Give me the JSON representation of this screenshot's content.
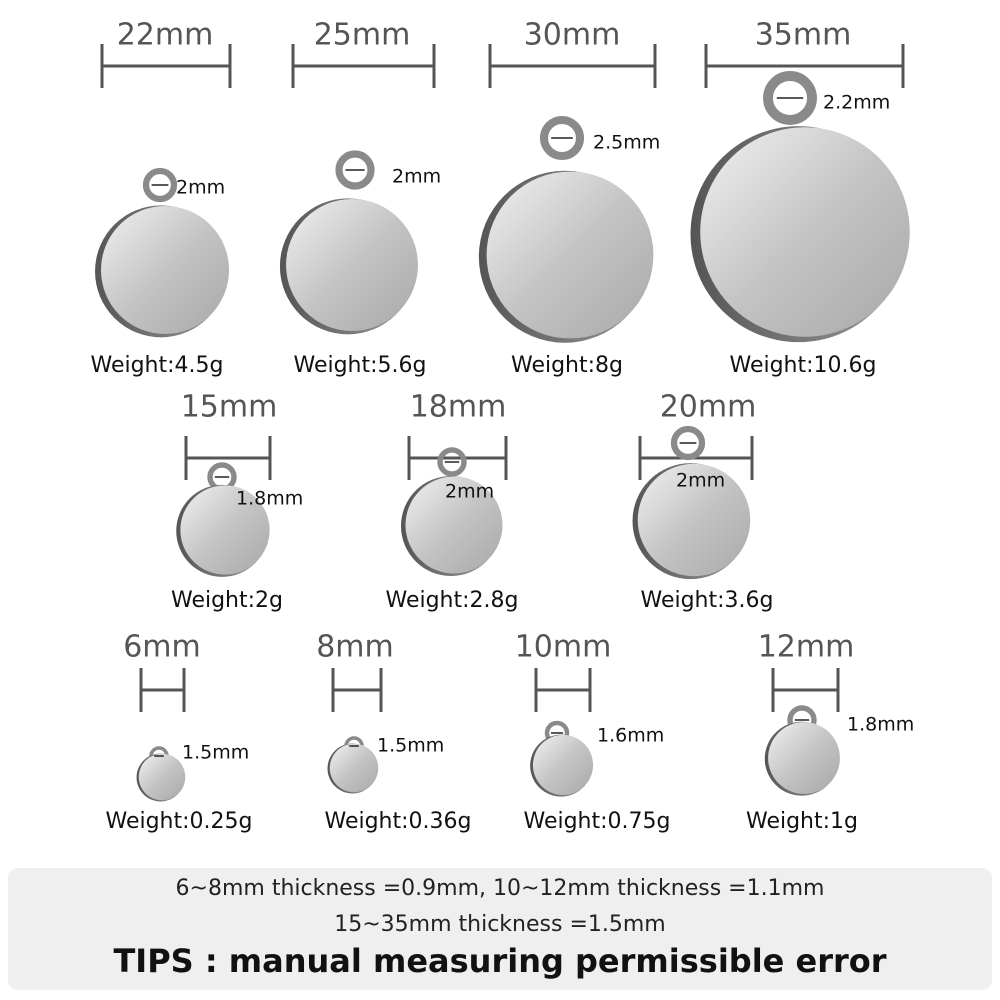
{
  "items": [
    {
      "size": "22mm",
      "hole": "2mm",
      "weight": "Weight:4.5g"
    },
    {
      "size": "25mm",
      "hole": "2mm",
      "weight": "Weight:5.6g"
    },
    {
      "size": "30mm",
      "hole": "2.5mm",
      "weight": "Weight:8g"
    },
    {
      "size": "35mm",
      "hole": "2.2mm",
      "weight": "Weight:10.6g"
    },
    {
      "size": "15mm",
      "hole": "1.8mm",
      "weight": "Weight:2g"
    },
    {
      "size": "18mm",
      "hole": "2mm",
      "weight": "Weight:2.8g"
    },
    {
      "size": "20mm",
      "hole": "2mm",
      "weight": "Weight:3.6g"
    },
    {
      "size": "6mm",
      "hole": "1.5mm",
      "weight": "Weight:0.25g"
    },
    {
      "size": "8mm",
      "hole": "1.5mm",
      "weight": "Weight:0.36g"
    },
    {
      "size": "10mm",
      "hole": "1.6mm",
      "weight": "Weight:0.75g"
    },
    {
      "size": "12mm",
      "hole": "1.8mm",
      "weight": "Weight:1g"
    }
  ],
  "footer": {
    "line1": "6~8mm thickness =0.9mm,  10~12mm thickness =1.1mm",
    "line2": "15~35mm thickness =1.5mm",
    "tips": "TIPS : manual measuring permissible error"
  }
}
